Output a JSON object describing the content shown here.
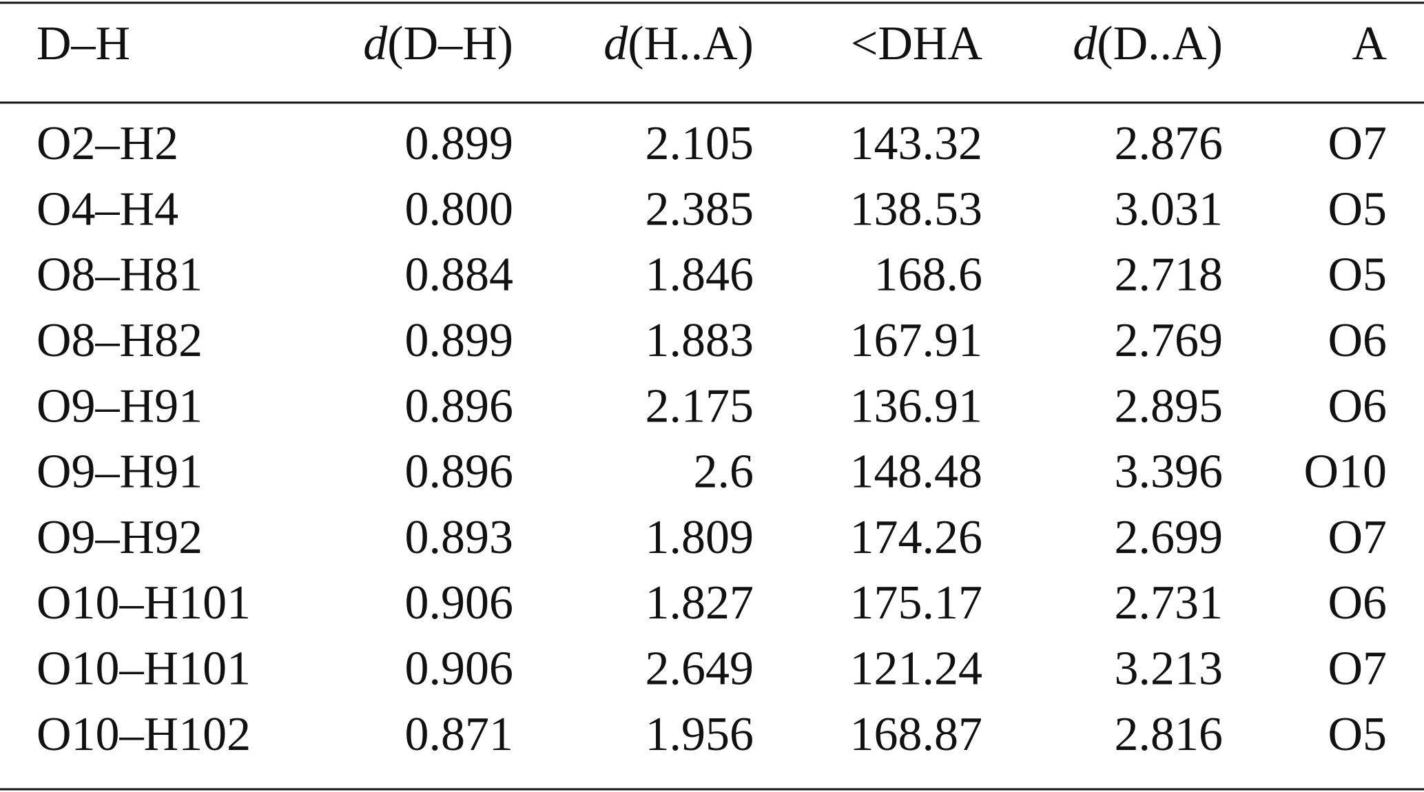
{
  "table": {
    "header": [
      {
        "text": "D–H"
      },
      {
        "italic": "d",
        "text": "(D–H)"
      },
      {
        "italic": "d",
        "text": "(H..A)"
      },
      {
        "text": "<DHA"
      },
      {
        "italic": "d",
        "text": "(D..A)"
      },
      {
        "text": "A"
      }
    ],
    "rows": [
      [
        "O2–H2",
        "0.899",
        "2.105",
        "143.32",
        "2.876",
        "O7"
      ],
      [
        "O4–H4",
        "0.800",
        "2.385",
        "138.53",
        "3.031",
        "O5"
      ],
      [
        "O8–H81",
        "0.884",
        "1.846",
        "168.6",
        "2.718",
        "O5"
      ],
      [
        "O8–H82",
        "0.899",
        "1.883",
        "167.91",
        "2.769",
        "O6"
      ],
      [
        "O9–H91",
        "0.896",
        "2.175",
        "136.91",
        "2.895",
        "O6"
      ],
      [
        "O9–H91",
        "0.896",
        "2.6",
        "148.48",
        "3.396",
        "O10"
      ],
      [
        "O9–H92",
        "0.893",
        "1.809",
        "174.26",
        "2.699",
        "O7"
      ],
      [
        "O10–H101",
        "0.906",
        "1.827",
        "175.17",
        "2.731",
        "O6"
      ],
      [
        "O10–H101",
        "0.906",
        "2.649",
        "121.24",
        "3.213",
        "O7"
      ],
      [
        "O10–H102",
        "0.871",
        "1.956",
        "168.87",
        "2.816",
        "O5"
      ]
    ]
  }
}
